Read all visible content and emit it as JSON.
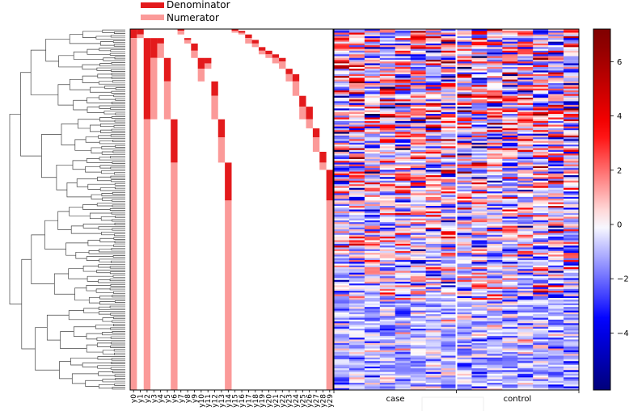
{
  "chart_data": [
    {
      "type": "dendrogram",
      "description_label": "dendrogram",
      "leaf_count": 200
    },
    {
      "type": "heatmap",
      "title": "",
      "legend": {
        "position": "top",
        "entries": [
          {
            "label": "Denominator",
            "color": "#e31a1c"
          },
          {
            "label": "Numerator",
            "color": "#fb9a99"
          }
        ]
      },
      "rows": 200,
      "balances": [
        "y0",
        "y1",
        "y2",
        "y3",
        "y4",
        "y5",
        "y6",
        "y7",
        "y8",
        "y9",
        "y10",
        "y11",
        "y12",
        "y13",
        "y14",
        "y15",
        "y16",
        "y17",
        "y18",
        "y19",
        "y20",
        "y21",
        "y22",
        "y23",
        "y24",
        "y25",
        "y26",
        "y27",
        "y28",
        "y29"
      ],
      "partition_intervals": {
        "y0": {
          "den": [
            0,
            5
          ],
          "num": [
            5,
            200
          ]
        },
        "y1": {
          "den": [
            0,
            3
          ],
          "num": [
            3,
            5
          ]
        },
        "y2": {
          "den": [
            5,
            50
          ],
          "num": [
            50,
            200
          ]
        },
        "y3": {
          "den": [
            5,
            16
          ],
          "num": [
            16,
            50
          ]
        },
        "y4": {
          "den": [
            5,
            8
          ],
          "num": [
            8,
            16
          ]
        },
        "y5": {
          "den": [
            16,
            29
          ],
          "num": [
            29,
            50
          ]
        },
        "y6": {
          "den": [
            50,
            74
          ],
          "num": [
            74,
            200
          ]
        },
        "y7": {
          "den": [
            0,
            1
          ],
          "num": [
            1,
            3
          ]
        },
        "y8": {
          "den": [
            5,
            6
          ],
          "num": [
            6,
            8
          ]
        },
        "y9": {
          "den": [
            8,
            12
          ],
          "num": [
            12,
            16
          ]
        },
        "y10": {
          "den": [
            16,
            22
          ],
          "num": [
            22,
            29
          ]
        },
        "y11": {
          "den": [
            16,
            19
          ],
          "num": [
            19,
            22
          ]
        },
        "y12": {
          "den": [
            29,
            37
          ],
          "num": [
            37,
            50
          ]
        },
        "y13": {
          "den": [
            50,
            60
          ],
          "num": [
            60,
            74
          ]
        },
        "y14": {
          "den": [
            74,
            95
          ],
          "num": [
            95,
            200
          ]
        },
        "y15": {
          "den": [
            0,
            1
          ],
          "num": [
            1,
            2
          ]
        },
        "y16": {
          "den": [
            1,
            2
          ],
          "num": [
            2,
            3
          ]
        },
        "y17": {
          "den": [
            3,
            5
          ],
          "num": [
            5,
            8
          ]
        },
        "y18": {
          "den": [
            6,
            8
          ],
          "num": [
            8,
            10
          ]
        },
        "y19": {
          "den": [
            10,
            12
          ],
          "num": [
            12,
            14
          ]
        },
        "y20": {
          "den": [
            12,
            14
          ],
          "num": [
            14,
            16
          ]
        },
        "y21": {
          "den": [
            14,
            16
          ],
          "num": [
            16,
            19
          ]
        },
        "y22": {
          "den": [
            16,
            18
          ],
          "num": [
            18,
            22
          ]
        },
        "y23": {
          "den": [
            22,
            25
          ],
          "num": [
            25,
            29
          ]
        },
        "y24": {
          "den": [
            25,
            29
          ],
          "num": [
            29,
            37
          ]
        },
        "y25": {
          "den": [
            37,
            43
          ],
          "num": [
            43,
            50
          ]
        },
        "y26": {
          "den": [
            43,
            50
          ],
          "num": [
            50,
            55
          ]
        },
        "y27": {
          "den": [
            55,
            60
          ],
          "num": [
            60,
            68
          ]
        },
        "y28": {
          "den": [
            68,
            74
          ],
          "num": [
            74,
            78
          ]
        },
        "y29": {
          "den": [
            78,
            95
          ],
          "num": [
            95,
            200
          ]
        }
      }
    },
    {
      "type": "heatmap",
      "rows": 200,
      "groups": [
        {
          "label": "case",
          "columns": 8
        },
        {
          "label": "control",
          "columns": 8
        }
      ],
      "value_range": [
        -7,
        7
      ],
      "colormap": "seismic",
      "values_note": "per-cell values generated deterministically from a seeded pseudo-random function"
    }
  ],
  "colorbar": {
    "ticks": [
      "6",
      "4",
      "2",
      "0",
      "−2",
      "−4"
    ],
    "tick_values": [
      6,
      4,
      2,
      0,
      -2,
      -4
    ],
    "range": [
      -6.1,
      7.2
    ],
    "colors": {
      "low": "#00004c",
      "mid": "#ffffff",
      "high": "#800000"
    }
  }
}
